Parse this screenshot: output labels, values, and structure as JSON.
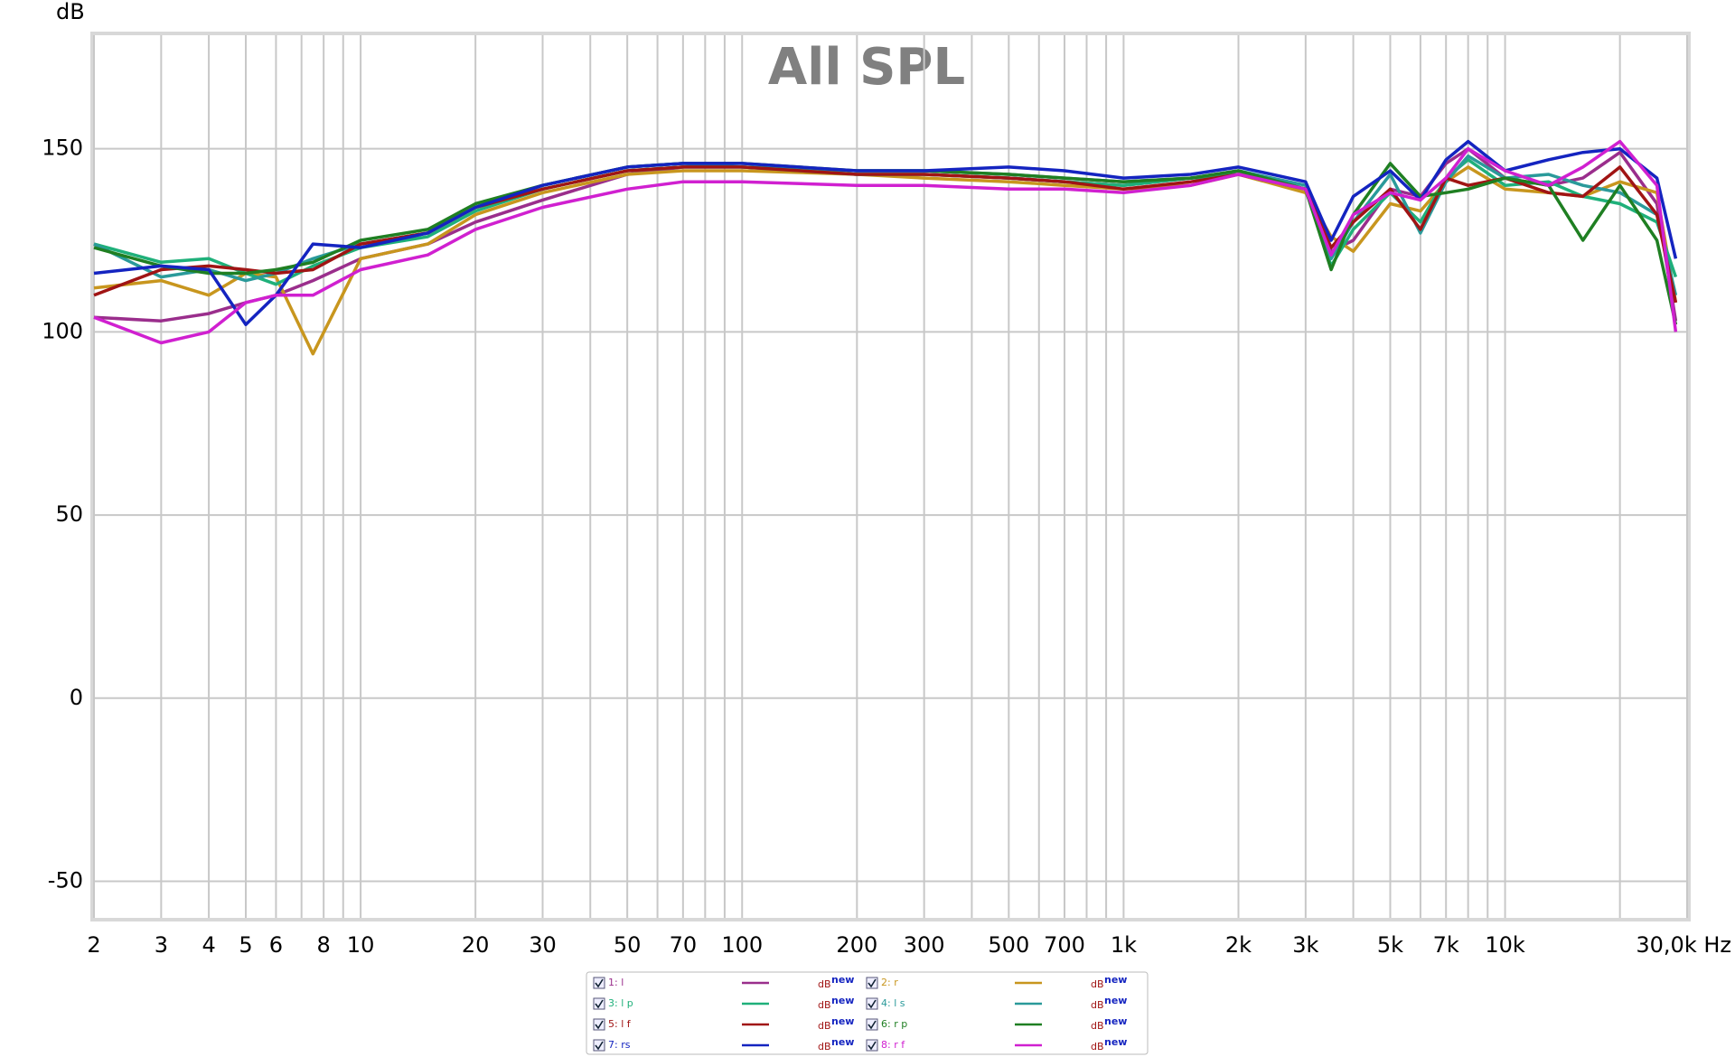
{
  "chart_data": {
    "type": "line",
    "title": "All SPL",
    "y_label": "dB",
    "xscale": "log",
    "grid": true,
    "xlim": [
      2,
      30000
    ],
    "ylim": [
      -60,
      181
    ],
    "xticks": [
      2,
      3,
      4,
      5,
      6,
      8,
      10,
      20,
      30,
      50,
      70,
      100,
      200,
      300,
      500,
      700,
      {
        "value": 1000,
        "label": "1k"
      },
      {
        "value": 2000,
        "label": "2k"
      },
      {
        "value": 3000,
        "label": "3k"
      },
      {
        "value": 5000,
        "label": "5k"
      },
      {
        "value": 7000,
        "label": "7k"
      },
      {
        "value": 10000,
        "label": "10k"
      },
      {
        "value": 30000,
        "label": "30,0k Hz"
      }
    ],
    "xminor_ticks": [
      7,
      9,
      40,
      60,
      80,
      90,
      400,
      600,
      800,
      900,
      4000,
      6000,
      8000,
      9000,
      20000
    ],
    "yticks": [
      -50,
      0,
      50,
      100,
      150
    ],
    "x": [
      2,
      3,
      4,
      5,
      6,
      7.5,
      10,
      15,
      20,
      30,
      50,
      70,
      100,
      200,
      300,
      500,
      700,
      1000,
      1500,
      2000,
      3000,
      3500,
      4000,
      5000,
      6000,
      7000,
      8000,
      10000,
      13000,
      16000,
      20000,
      25000,
      28000
    ],
    "series": [
      {
        "name": "1: l",
        "color": "#9a2e8c",
        "unit": "dB",
        "status": "new",
        "values": [
          104,
          103,
          105,
          108,
          110,
          114,
          120,
          124,
          130,
          136,
          143,
          145,
          145,
          143,
          143,
          142,
          141,
          140,
          142,
          143,
          139,
          122,
          125,
          139,
          137,
          146,
          150,
          142,
          140,
          142,
          149,
          135,
          103
        ]
      },
      {
        "name": "2: r",
        "color": "#c8961e",
        "unit": "dB",
        "status": "new",
        "values": [
          112,
          114,
          110,
          116,
          115,
          94,
          120,
          124,
          132,
          138,
          143,
          144,
          144,
          143,
          142,
          141,
          140,
          139,
          140,
          143,
          138,
          126,
          122,
          135,
          133,
          141,
          145,
          139,
          138,
          137,
          141,
          138,
          108
        ]
      },
      {
        "name": "3: l p",
        "color": "#1fb07a",
        "unit": "dB",
        "status": "new",
        "values": [
          124,
          119,
          120,
          116,
          113,
          118,
          123,
          126,
          133,
          139,
          144,
          145,
          145,
          143,
          143,
          142,
          141,
          140,
          142,
          143,
          139,
          118,
          128,
          138,
          130,
          142,
          147,
          140,
          141,
          137,
          135,
          130,
          115
        ]
      },
      {
        "name": "4: l s",
        "color": "#2a9a9a",
        "unit": "dB",
        "status": "new",
        "values": [
          124,
          115,
          117,
          114,
          116,
          120,
          124,
          127,
          134,
          140,
          145,
          146,
          145,
          144,
          144,
          143,
          142,
          141,
          142,
          144,
          140,
          120,
          130,
          143,
          127,
          141,
          148,
          142,
          143,
          140,
          138,
          132,
          110
        ]
      },
      {
        "name": "5: l f",
        "color": "#a01414",
        "unit": "dB",
        "status": "new",
        "values": [
          110,
          117,
          118,
          117,
          116,
          117,
          124,
          127,
          134,
          139,
          144,
          145,
          145,
          143,
          143,
          142,
          141,
          139,
          141,
          143,
          139,
          123,
          130,
          139,
          128,
          142,
          140,
          142,
          138,
          137,
          145,
          132,
          108
        ]
      },
      {
        "name": "6: r p",
        "color": "#1f7f22",
        "unit": "dB",
        "status": "new",
        "values": [
          123,
          118,
          116,
          116,
          117,
          119,
          125,
          128,
          135,
          140,
          145,
          146,
          146,
          144,
          144,
          143,
          142,
          141,
          142,
          144,
          139,
          117,
          132,
          146,
          137,
          138,
          139,
          142,
          140,
          125,
          140,
          125,
          102
        ]
      },
      {
        "name": "7: rs",
        "color": "#1424c0",
        "unit": "dB",
        "status": "new",
        "values": [
          116,
          118,
          117,
          102,
          110,
          124,
          123,
          127,
          134,
          140,
          145,
          146,
          146,
          144,
          144,
          145,
          144,
          142,
          143,
          145,
          141,
          125,
          137,
          144,
          136,
          147,
          152,
          144,
          147,
          149,
          150,
          142,
          120
        ]
      },
      {
        "name": "8: r f",
        "color": "#d020d0",
        "unit": "dB",
        "status": "new",
        "values": [
          104,
          97,
          100,
          108,
          110,
          110,
          117,
          121,
          128,
          134,
          139,
          141,
          141,
          140,
          140,
          139,
          139,
          138,
          140,
          143,
          139,
          121,
          132,
          138,
          136,
          142,
          150,
          144,
          140,
          145,
          152,
          140,
          100
        ]
      }
    ]
  }
}
